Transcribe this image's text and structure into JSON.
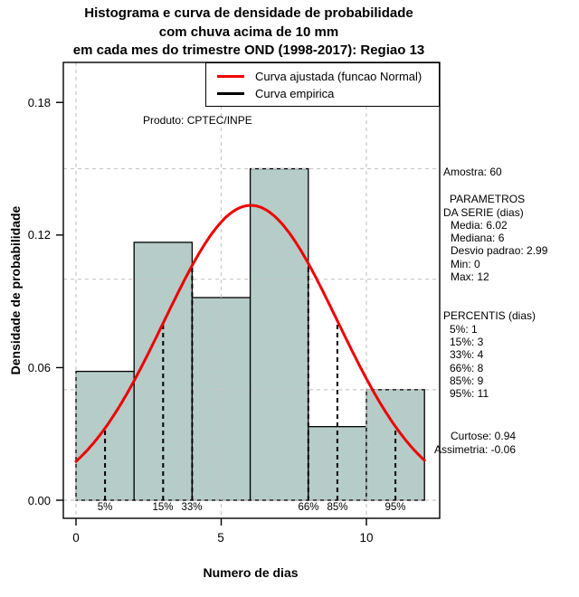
{
  "chart_data": {
    "type": "bar",
    "subtype": "histogram-with-fitted-normal-curve",
    "title_lines": [
      "Histograma e curva de densidade de probabilidade",
      "com chuva acima de 10 mm",
      "em cada mes do trimestre OND (1998-2017): Regiao 13"
    ],
    "xlabel": "Numero de dias",
    "ylabel": "Densidade de probabilidade",
    "x_tick_labels": [
      "0",
      "5",
      "10"
    ],
    "x_tick_values": [
      0,
      5,
      10
    ],
    "y_tick_labels": [
      "0.00",
      "0.06",
      "0.12",
      "0.18"
    ],
    "y_tick_values": [
      0,
      0.06,
      0.12,
      0.18
    ],
    "xlim": [
      -0.44,
      12.55
    ],
    "ylim": [
      -0.008,
      0.198
    ],
    "gridlines": {
      "x": [
        0,
        5,
        10
      ],
      "y": [
        0,
        0.05,
        0.1,
        0.15
      ],
      "color": "#c8c8c8",
      "style": "dashed"
    },
    "histogram": {
      "breaks": [
        0,
        2,
        4,
        6,
        8,
        10,
        12
      ],
      "densities": [
        0.0583,
        0.1167,
        0.0917,
        0.15,
        0.0333,
        0.05
      ],
      "fill_color": "#b5ccc8",
      "edge_color": "#000000"
    },
    "fitted_normal": {
      "mean": 6.02,
      "sd": 2.99,
      "color": "#ee0000",
      "x_range": [
        0,
        12
      ]
    },
    "percentile_lines": [
      {
        "label": "5%",
        "x": 1
      },
      {
        "label": "15%",
        "x": 3
      },
      {
        "label": "33%",
        "x": 4
      },
      {
        "label": "66%",
        "x": 8
      },
      {
        "label": "85%",
        "x": 9
      },
      {
        "label": "95%",
        "x": 11
      }
    ],
    "legend": [
      {
        "label": "Curva ajustada (funcao Normal)",
        "color": "#ee0000"
      },
      {
        "label": "Curva empirica",
        "color": "#000000"
      }
    ],
    "annotation": "Produto: CPTEC/INPE",
    "legend_position": "top-right-inside",
    "grid": "on"
  },
  "stats_panel": {
    "lines": [
      "Amostra: 60",
      "PARAMETROS",
      "DA SERIE (dias)",
      "Media: 6.02",
      "Mediana: 6",
      "Desvio padrao: 2.99",
      "Min: 0",
      "Max: 12",
      "PERCENTIS (dias)",
      "5%: 1",
      "15%: 3",
      "33%: 4",
      "66%: 8",
      "85%: 9",
      "95%: 11",
      "Curtose: 0.94",
      "Assimetria: -0.06"
    ]
  }
}
